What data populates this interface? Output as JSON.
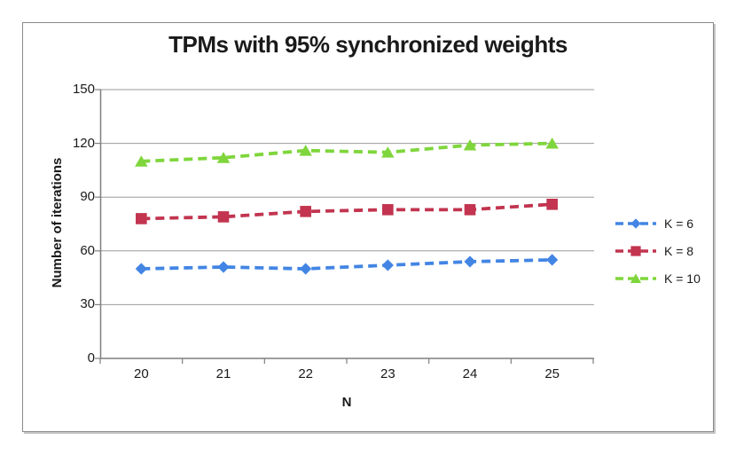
{
  "chart_data": {
    "type": "line",
    "title": "TPMs with 95% synchronized weights",
    "xlabel": "N",
    "ylabel": "Number of iterations",
    "categories": [
      20,
      21,
      22,
      23,
      24,
      25
    ],
    "series": [
      {
        "name": "K = 6",
        "marker": "diamond",
        "color": "#4285e4",
        "values": [
          50,
          51,
          50,
          52,
          54,
          55
        ]
      },
      {
        "name": "K = 8",
        "marker": "square",
        "color": "#c2344f",
        "values": [
          78,
          79,
          82,
          83,
          83,
          86
        ]
      },
      {
        "name": "K = 10",
        "marker": "triangle",
        "color": "#7fd63c",
        "values": [
          110,
          112,
          116,
          115,
          119,
          120
        ]
      }
    ],
    "ylim": [
      0,
      150
    ],
    "y_ticks": [
      0,
      30,
      60,
      90,
      120,
      150
    ],
    "grid": true,
    "line_style": "dashed",
    "legend_position": "right"
  },
  "style_colors": {
    "grid": "#9b9b9b",
    "axis": "#7f7f7f",
    "text": "#1a1a1a",
    "frame_border": "#8a8a8a",
    "background": "#ffffff"
  }
}
